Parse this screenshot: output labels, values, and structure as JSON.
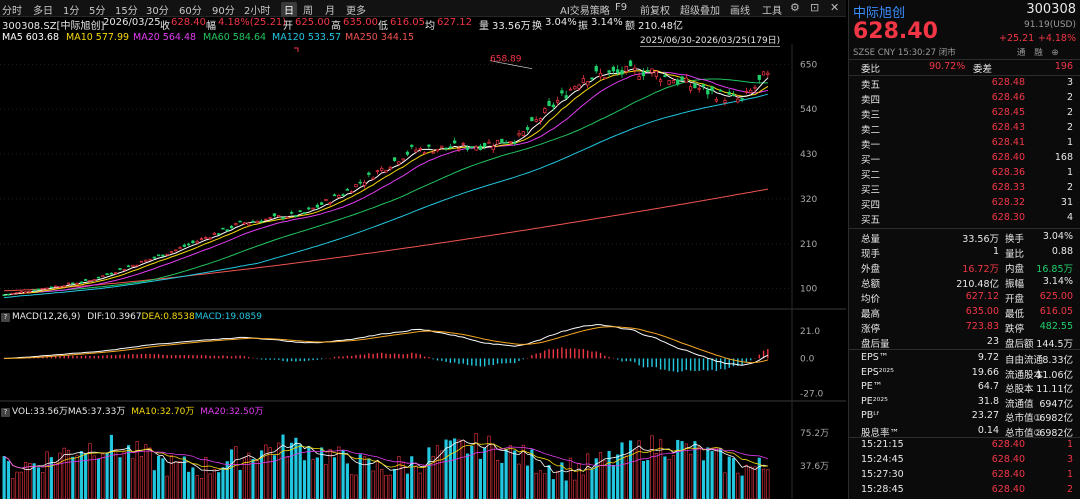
{
  "toolbar": {
    "periods": [
      "分时",
      "多日",
      "1分",
      "5分",
      "15分",
      "30分",
      "60分",
      "90分",
      "2小时",
      "日",
      "周",
      "月",
      "更多"
    ],
    "active_period": "日",
    "tools": [
      "AI交易策略",
      "F9",
      "前复权",
      "超级叠加",
      "画线",
      "工具"
    ]
  },
  "info": {
    "symbol": "300308.SZ[中际旭创]",
    "date": "2026/03/25",
    "close_label": "收",
    "close": "628.40",
    "change_label": "幅",
    "change": "4.18%(25.21)",
    "open_label": "开",
    "open": "625.00",
    "high_label": "高",
    "high": "635.00",
    "low_label": "低",
    "low": "616.05",
    "avg_label": "均",
    "avg": "627.12",
    "volume_label": "量",
    "volume": "33.56万",
    "turnover_label": "换",
    "turnover": "3.04%",
    "amplitude_label": "振",
    "amplitude": "3.14%",
    "amount_label": "额",
    "amount": "210.48亿"
  },
  "ma": {
    "ma5": "MA5 603.68",
    "ma10": "MA10 577.99",
    "ma20": "MA20 564.48",
    "ma60": "MA60 584.64",
    "ma120": "MA120 533.57",
    "ma250": "MA250 344.15"
  },
  "range_label": "2025/06/30-2026/03/25(179日)",
  "price_axis": [
    "650",
    "540",
    "430",
    "320",
    "210",
    "100"
  ],
  "max_annotation": "658.89",
  "macd": {
    "label": "MACD(12,26,9)",
    "dif": "DIF:10.3967",
    "dea": "DEA:0.8538",
    "macd": "MACD:19.0859",
    "axis": [
      "21.0",
      "0.0",
      "-27.0"
    ]
  },
  "vol": {
    "label": "VOL:33.56万",
    "ma5": "MA5:37.33万",
    "ma10": "MA10:32.70万",
    "ma20": "MA20:32.50万",
    "axis": [
      "75.2万",
      "37.6万"
    ]
  },
  "colors": {
    "up": "#f23645",
    "down": "#1fcf6b",
    "ma5": "#ffffff",
    "ma10": "#f5d90a",
    "ma20": "#e03cf0",
    "ma60": "#22c55e",
    "ma120": "#22c7e0",
    "ma250": "#ef5350"
  },
  "side": {
    "name": "中际旭创",
    "code": "300308",
    "price": "628.40",
    "usd": "91.19(USD)",
    "change": "+25.21",
    "change_pct": "+4.18%",
    "exchange": "SZSE",
    "currency": "CNY",
    "time": "15:30:27",
    "status": "闭市",
    "links": [
      "通",
      "融",
      "⊕"
    ],
    "ratio_label": "委比",
    "ratio": "90.72%",
    "diff_label": "委差",
    "diff": "196",
    "asks": [
      {
        "label": "卖五",
        "price": "628.48",
        "vol": "3"
      },
      {
        "label": "卖四",
        "price": "628.46",
        "vol": "2"
      },
      {
        "label": "卖三",
        "price": "628.45",
        "vol": "2"
      },
      {
        "label": "卖二",
        "price": "628.43",
        "vol": "2"
      },
      {
        "label": "卖一",
        "price": "628.41",
        "vol": "1"
      }
    ],
    "bids": [
      {
        "label": "买一",
        "price": "628.40",
        "vol": "168"
      },
      {
        "label": "买二",
        "price": "628.36",
        "vol": "1"
      },
      {
        "label": "买三",
        "price": "628.33",
        "vol": "2"
      },
      {
        "label": "买四",
        "price": "628.32",
        "vol": "31"
      },
      {
        "label": "买五",
        "price": "628.30",
        "vol": "4"
      }
    ],
    "stats": [
      {
        "l1": "总量",
        "v1": "33.56万",
        "c1": "white",
        "l2": "换手",
        "v2": "3.04%",
        "c2": "white"
      },
      {
        "l1": "现手",
        "v1": "1",
        "c1": "white",
        "l2": "量比",
        "v2": "0.88",
        "c2": "white"
      },
      {
        "l1": "外盘",
        "v1": "16.72万",
        "c1": "red",
        "l2": "内盘",
        "v2": "16.85万",
        "c2": "green"
      },
      {
        "l1": "总额",
        "v1": "210.48亿",
        "c1": "white",
        "l2": "振幅",
        "v2": "3.14%",
        "c2": "white"
      },
      {
        "l1": "均价",
        "v1": "627.12",
        "c1": "red",
        "l2": "开盘",
        "v2": "625.00",
        "c2": "red"
      },
      {
        "l1": "最高",
        "v1": "635.00",
        "c1": "red",
        "l2": "最低",
        "v2": "616.05",
        "c2": "red"
      },
      {
        "l1": "涨停",
        "v1": "723.83",
        "c1": "red",
        "l2": "跌停",
        "v2": "482.55",
        "c2": "green"
      },
      {
        "l1": "盘后量",
        "v1": "23",
        "c1": "white",
        "l2": "盘后额",
        "v2": "144.5万",
        "c2": "white"
      }
    ],
    "fundamentals": [
      {
        "l1": "EPS™",
        "v1": "9.72",
        "l2": "自由流通",
        "v2": "8.33亿"
      },
      {
        "l1": "EPS²⁰²⁵",
        "v1": "19.66",
        "l2": "流通股本",
        "v2": "11.06亿"
      },
      {
        "l1": "PE™",
        "v1": "64.7",
        "l2": "总股本",
        "v2": "11.11亿"
      },
      {
        "l1": "PE²⁰²⁵",
        "v1": "31.8",
        "l2": "流通值",
        "v2": "6947亿"
      },
      {
        "l1": "PBᴸᶠ",
        "v1": "23.27",
        "l2": "总市值①",
        "v2": "6982亿"
      },
      {
        "l1": "股息率™",
        "v1": "0.14",
        "l2": "总市值②",
        "v2": "6982亿"
      }
    ],
    "trades": [
      {
        "time": "15:21:15",
        "price": "628.40",
        "vol": "1"
      },
      {
        "time": "15:24:45",
        "price": "628.40",
        "vol": "3"
      },
      {
        "time": "15:27:30",
        "price": "628.40",
        "vol": "1"
      },
      {
        "time": "15:28:45",
        "price": "628.40",
        "vol": "2"
      }
    ]
  },
  "chart_data": {
    "type": "candlestick",
    "date_range": "2025/06/30-2026/03/25",
    "days": 179,
    "ylim": [
      60,
      690
    ],
    "price_ticks": [
      100,
      210,
      320,
      430,
      540,
      650
    ],
    "last": {
      "open": 625.0,
      "high": 635.0,
      "low": 616.05,
      "close": 628.4
    },
    "max_marked": 658.89,
    "ma_last": {
      "MA5": 603.68,
      "MA10": 577.99,
      "MA20": 564.48,
      "MA60": 584.64,
      "MA120": 533.57,
      "MA250": 344.15
    },
    "macd_last": {
      "DIF": 10.3967,
      "DEA": 0.8538,
      "MACD": 19.0859
    },
    "macd_ticks": [
      21.0,
      0.0,
      -27.0
    ],
    "vol_last": {
      "VOL": 335600,
      "MA5": 373300,
      "MA10": 327000,
      "MA20": 325000
    },
    "vol_ticks": [
      376000,
      752000
    ]
  }
}
